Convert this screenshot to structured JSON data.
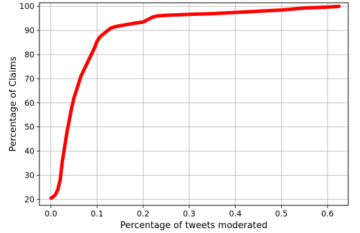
{
  "chart_data": {
    "type": "line",
    "title": "",
    "xlabel": "Percentage of tweets moderated",
    "ylabel": "Percentage of Claims",
    "xlim": [
      -0.025,
      0.645
    ],
    "ylim": [
      17.5,
      101.5
    ],
    "x_ticks": [
      0.0,
      0.1,
      0.2,
      0.3,
      0.4,
      0.5,
      0.6
    ],
    "x_tick_labels": [
      "0.0",
      "0.1",
      "0.2",
      "0.3",
      "0.4",
      "0.5",
      "0.6"
    ],
    "y_ticks": [
      20,
      30,
      40,
      50,
      60,
      70,
      80,
      90,
      100
    ],
    "y_tick_labels": [
      "20",
      "30",
      "40",
      "50",
      "60",
      "70",
      "80",
      "90",
      "100"
    ],
    "grid": true,
    "legend": "none",
    "series": [
      {
        "color": "#ff0000",
        "x": [
          0.0,
          0.005,
          0.01,
          0.015,
          0.02,
          0.025,
          0.03,
          0.035,
          0.04,
          0.045,
          0.05,
          0.055,
          0.06,
          0.065,
          0.07,
          0.075,
          0.08,
          0.085,
          0.09,
          0.095,
          0.1,
          0.105,
          0.11,
          0.115,
          0.12,
          0.13,
          0.14,
          0.15,
          0.16,
          0.18,
          0.2,
          0.21,
          0.22,
          0.23,
          0.25,
          0.3,
          0.35,
          0.4,
          0.45,
          0.5,
          0.55,
          0.6,
          0.625
        ],
        "y": [
          20.5,
          21,
          22,
          24,
          28,
          36,
          42,
          48,
          53,
          58,
          62,
          65,
          68,
          71,
          73,
          75,
          77,
          79,
          81,
          83,
          85.5,
          87,
          88,
          88.7,
          89.5,
          91,
          91.6,
          92,
          92.3,
          93,
          93.5,
          94.5,
          95.5,
          96,
          96.3,
          96.7,
          97,
          97.5,
          98,
          98.5,
          99.3,
          99.7,
          100
        ]
      }
    ]
  }
}
